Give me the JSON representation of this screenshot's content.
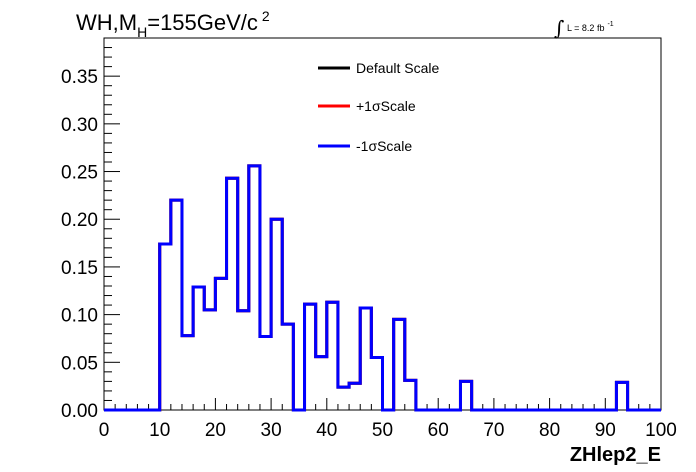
{
  "chart_data": {
    "type": "histogram",
    "title": {
      "main": "WH,M",
      "sub": "H",
      "rest": "=155GeV/c",
      "sup": "2"
    },
    "lumi": {
      "symbol": "∫",
      "text": "L = 8.2 fb",
      "sup": "-1"
    },
    "xlabel": "ZHlep2_E",
    "ylabel": "",
    "xlim": [
      0,
      100
    ],
    "ylim": [
      0,
      0.39
    ],
    "x_ticks": [
      0,
      10,
      20,
      30,
      40,
      50,
      60,
      70,
      80,
      90,
      100
    ],
    "x_tick_labels": [
      "0",
      "10",
      "20",
      "30",
      "40",
      "50",
      "60",
      "70",
      "80",
      "90",
      "100"
    ],
    "y_ticks": [
      0,
      0.05,
      0.1,
      0.15,
      0.2,
      0.25,
      0.3,
      0.35
    ],
    "y_tick_labels": [
      "0.00",
      "0.05",
      "0.10",
      "0.15",
      "0.20",
      "0.25",
      "0.30",
      "0.35"
    ],
    "grid": false,
    "legend_position": "top-center",
    "bin_edges": [
      0,
      2,
      4,
      6,
      8,
      10,
      12,
      14,
      16,
      18,
      20,
      22,
      24,
      26,
      28,
      30,
      32,
      34,
      36,
      38,
      40,
      42,
      44,
      46,
      48,
      50,
      52,
      54,
      56,
      58,
      60,
      62,
      64,
      66,
      68,
      70,
      72,
      74,
      76,
      78,
      80,
      82,
      84,
      86,
      88,
      90,
      92,
      94,
      96,
      98,
      100
    ],
    "series": [
      {
        "name": "Default Scale",
        "color": "#000000",
        "values": [
          0,
          0,
          0,
          0,
          0,
          0.174,
          0.22,
          0.078,
          0.129,
          0.105,
          0.138,
          0.243,
          0.104,
          0.256,
          0.077,
          0.2,
          0.09,
          0,
          0.111,
          0.056,
          0.113,
          0.024,
          0.028,
          0.107,
          0.055,
          0,
          0.095,
          0.031,
          0,
          0,
          0,
          0,
          0.03,
          0,
          0,
          0,
          0,
          0,
          0,
          0,
          0,
          0,
          0,
          0,
          0,
          0,
          0.029,
          0,
          0,
          0
        ]
      },
      {
        "name": "+1σScale",
        "color": "#ff0000",
        "values": [
          0,
          0,
          0,
          0,
          0,
          0.174,
          0.22,
          0.078,
          0.129,
          0.105,
          0.138,
          0.243,
          0.104,
          0.256,
          0.077,
          0.2,
          0.09,
          0,
          0.111,
          0.056,
          0.113,
          0.024,
          0.028,
          0.107,
          0.055,
          0,
          0.095,
          0.031,
          0,
          0,
          0,
          0,
          0.03,
          0,
          0,
          0,
          0,
          0,
          0,
          0,
          0,
          0,
          0,
          0,
          0,
          0,
          0.029,
          0,
          0,
          0
        ]
      },
      {
        "name": "-1σScale",
        "color": "#0000ff",
        "values": [
          0,
          0,
          0,
          0,
          0,
          0.174,
          0.22,
          0.078,
          0.129,
          0.105,
          0.138,
          0.243,
          0.104,
          0.256,
          0.077,
          0.2,
          0.09,
          0,
          0.111,
          0.056,
          0.113,
          0.024,
          0.028,
          0.107,
          0.055,
          0,
          0.095,
          0.031,
          0,
          0,
          0,
          0,
          0.03,
          0,
          0,
          0,
          0,
          0,
          0,
          0,
          0,
          0,
          0,
          0,
          0,
          0,
          0.029,
          0,
          0,
          0
        ]
      }
    ]
  }
}
